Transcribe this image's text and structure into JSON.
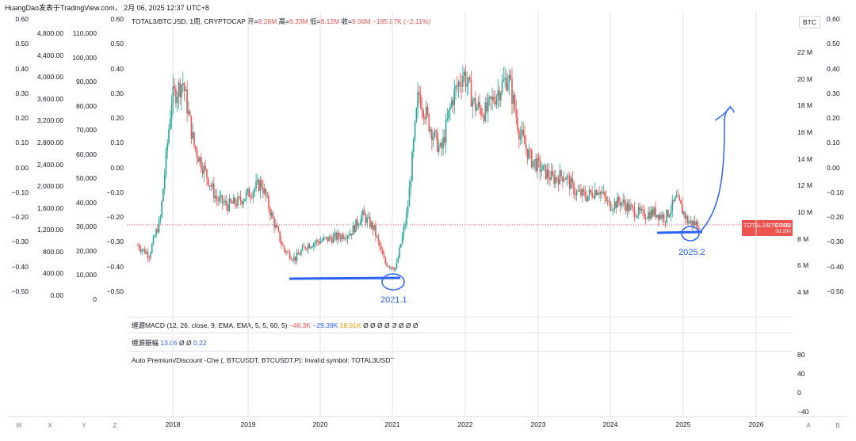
{
  "header": {
    "text": "HuangDao发表于TradingView.com， 2月 06, 2025 12:37 UTC+8"
  },
  "legend": {
    "symbol": "TOTAL3/BTCUSD, 1周, CRYPTOCAP",
    "open_label": "开=",
    "open": "9.26M",
    "high_label": "高=",
    "high": "9.33M",
    "low_label": "低=",
    "low": "8.12M",
    "close_label": "收=",
    "close": "9.06M",
    "change": "−195.07K (−2.11%)"
  },
  "currency_button": "BTC",
  "price_tag": {
    "label": "TOTAL3/BTCUSD",
    "value": "9.06M",
    "countdown": "3d 20h"
  },
  "indicators": {
    "macd": {
      "label": "缠源MACD (12, 26, close, 9, EMA, EMA, 5, 5, 60, 5)",
      "v1": "−48.3K",
      "v2": "−29.39K",
      "v3": "18.91K",
      "rest": "Ø Ø Ø Ø Ø Ø Ø Ø"
    },
    "amp": {
      "label": "缠源振幅",
      "v1": "13.06",
      "rest": "Ø Ø",
      "v2": "0.22"
    },
    "premium": {
      "label": "Auto Premium/Discount -Che (, BTCUSDT, BTCUSDT.P): Invalid symbol: TOTAL3USDT"
    }
  },
  "scales": {
    "left_outer": [
      "0.60",
      "0.50",
      "0.40",
      "0.30",
      "0.20",
      "0.10",
      "0.00",
      "−0.10",
      "−0.20",
      "−0.30",
      "−0.40",
      "−0.50"
    ],
    "left_usd1": [
      "4,800.00",
      "4,400.00",
      "4,000.00",
      "3,600.00",
      "3,200.00",
      "2,800.00",
      "2,400.00",
      "2,000.00",
      "1,600.00",
      "1,200.00",
      "800.00",
      "400.00",
      "0.00"
    ],
    "left_usd2": [
      "110,000",
      "100,000",
      "90,000",
      "80,000",
      "70,000",
      "60,000",
      "50,000",
      "40,000",
      "30,000",
      "20,000",
      "10,000",
      "0"
    ],
    "left_inner": [
      "0.60",
      "0.50",
      "0.40",
      "0.30",
      "0.20",
      "0.10",
      "0.00",
      "−0.10",
      "−0.20",
      "−0.30",
      "−0.40",
      "−0.50"
    ],
    "right_main": [
      "22 M",
      "20 M",
      "18 M",
      "16 M",
      "14 M",
      "12 M",
      "10 M",
      "8 M",
      "6 M",
      "4 M"
    ],
    "right_outer": [
      "0.60",
      "0.50",
      "0.40",
      "0.30",
      "0.20",
      "0.10",
      "0.00",
      "−0.10",
      "−0.20",
      "−0.30",
      "−0.40",
      "−0.50"
    ],
    "right_ind": [
      "80",
      "40",
      "0",
      "−40"
    ]
  },
  "x_axis": [
    "2018",
    "2019",
    "2020",
    "2021",
    "2022",
    "2023",
    "2024",
    "2025",
    "2026"
  ],
  "bottom_letters": [
    "W",
    "X",
    "Y",
    "Z",
    "A",
    "B"
  ],
  "annotations": {
    "low_2021": "2021.1",
    "low_2025": "2025.2"
  },
  "colors": {
    "up": "#26a69a",
    "down": "#ef5350",
    "annotation": "#2962ff",
    "grid": "#e0e3eb"
  },
  "chart_data": {
    "type": "candlestick",
    "title": "TOTAL3/BTCUSD, 1周, CRYPTOCAP",
    "y_unit": "M",
    "ylim": [
      3,
      23
    ],
    "x": [
      "2017-07",
      "2017-09",
      "2017-11",
      "2017-12",
      "2018-01",
      "2018-02",
      "2018-04",
      "2018-06",
      "2018-08",
      "2018-10",
      "2018-12",
      "2019-02",
      "2019-04",
      "2019-06",
      "2019-08",
      "2019-10",
      "2019-12",
      "2020-02",
      "2020-04",
      "2020-06",
      "2020-08",
      "2020-10",
      "2020-12",
      "2021-01",
      "2021-02",
      "2021-04",
      "2021-05",
      "2021-07",
      "2021-09",
      "2021-11",
      "2022-01",
      "2022-03",
      "2022-05",
      "2022-07",
      "2022-09",
      "2022-11",
      "2023-01",
      "2023-03",
      "2023-05",
      "2023-07",
      "2023-09",
      "2023-11",
      "2024-01",
      "2024-03",
      "2024-05",
      "2024-07",
      "2024-09",
      "2024-11",
      "2024-12",
      "2025-01",
      "2025-02"
    ],
    "close": [
      7.5,
      6.8,
      9.5,
      18.5,
      19.8,
      15.0,
      13.0,
      11.0,
      10.5,
      10.8,
      11.5,
      12.2,
      9.5,
      7.2,
      6.5,
      7.5,
      7.8,
      8.0,
      8.2,
      8.5,
      9.8,
      8.8,
      6.2,
      5.8,
      10.0,
      19.0,
      16.5,
      14.5,
      18.5,
      20.5,
      18.0,
      17.5,
      19.0,
      20.2,
      16.0,
      14.0,
      13.2,
      12.5,
      12.8,
      11.5,
      11.2,
      11.8,
      10.5,
      10.8,
      10.2,
      9.8,
      10.0,
      9.6,
      11.0,
      9.3,
      9.06
    ],
    "projection_target": 18.5
  }
}
